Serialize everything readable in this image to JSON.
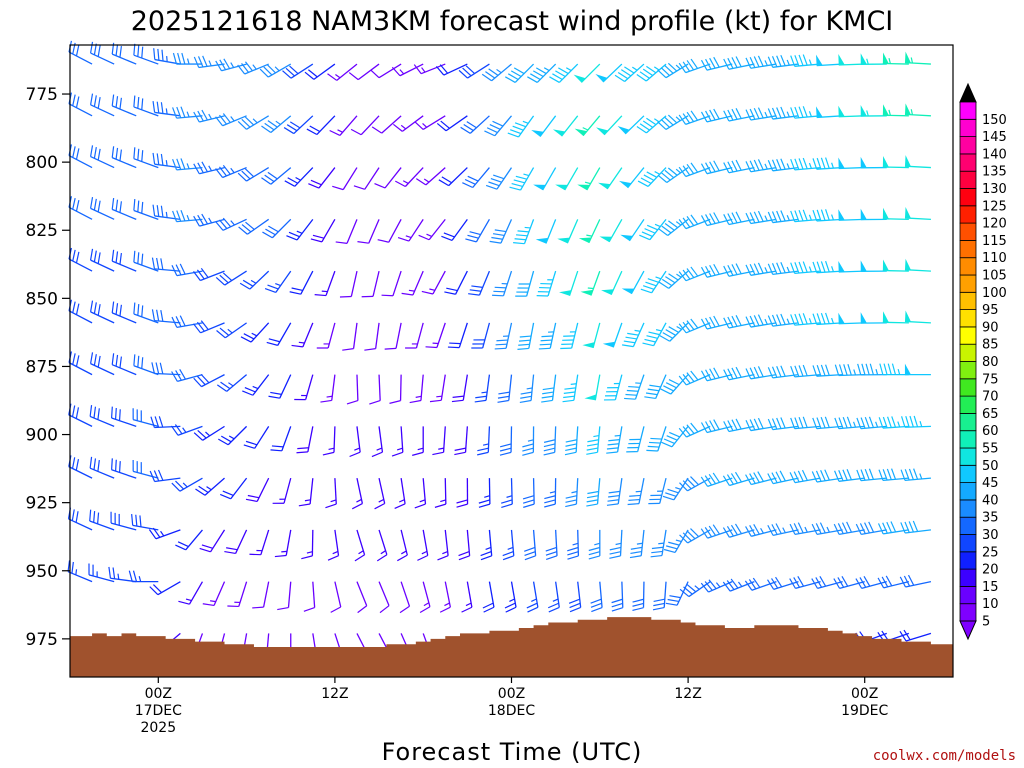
{
  "chart_data": {
    "type": "wind-barb time-height",
    "title": "2025121618 NAM3KM forecast wind profile (kt) for KMCI",
    "xlabel": "Forecast Time (UTC)",
    "ylabel": "",
    "y_ticks": [
      "775",
      "800",
      "825",
      "850",
      "875",
      "900",
      "925",
      "950",
      "975"
    ],
    "y_range_hpa": [
      757,
      989
    ],
    "x_tick_labels": [
      {
        "hour": 6,
        "lines": [
          "00Z",
          "17DEC",
          "2025"
        ]
      },
      {
        "hour": 18,
        "lines": [
          "12Z"
        ]
      },
      {
        "hour": 30,
        "lines": [
          "00Z",
          "18DEC"
        ]
      },
      {
        "hour": 42,
        "lines": [
          "12Z"
        ]
      },
      {
        "hour": 54,
        "lines": [
          "00Z",
          "19DEC"
        ]
      }
    ],
    "x_range_hours": [
      0,
      60
    ],
    "colorbar_levels": [
      5,
      10,
      15,
      20,
      25,
      30,
      35,
      40,
      45,
      50,
      55,
      60,
      65,
      70,
      75,
      80,
      85,
      90,
      95,
      100,
      105,
      110,
      115,
      120,
      125,
      130,
      135,
      140,
      145,
      150
    ],
    "colorbar_colors": [
      "#7f00ff",
      "#6a00ff",
      "#3c00ff",
      "#1020ff",
      "#1046ff",
      "#1468ff",
      "#1a8cff",
      "#14aaff",
      "#10c8ff",
      "#10e6e0",
      "#10f0b8",
      "#18f090",
      "#22ee55",
      "#40e820",
      "#80f010",
      "#c8f400",
      "#ffff00",
      "#ffe000",
      "#ffc000",
      "#ffa000",
      "#ff8c00",
      "#ff7000",
      "#ff5000",
      "#ff2000",
      "#ff0010",
      "#ff0040",
      "#ff0070",
      "#ff00a0",
      "#ff00d0",
      "#ff00ff"
    ],
    "colorbar_label_levels": [
      "5",
      "10",
      "15",
      "20",
      "25",
      "30",
      "35",
      "40",
      "45",
      "50",
      "55",
      "60",
      "65",
      "70",
      "75",
      "80",
      "85",
      "90",
      "95",
      "100",
      "105",
      "110",
      "115",
      "120",
      "125",
      "130",
      "135",
      "140",
      "145",
      "150"
    ],
    "surface_pressure_hpa": [
      [
        0,
        974
      ],
      [
        1,
        974
      ],
      [
        2,
        973
      ],
      [
        3,
        974
      ],
      [
        4,
        973
      ],
      [
        5,
        974
      ],
      [
        6,
        974
      ],
      [
        7,
        975
      ],
      [
        8,
        975
      ],
      [
        9,
        976
      ],
      [
        10,
        976
      ],
      [
        11,
        977
      ],
      [
        12,
        977
      ],
      [
        13,
        978
      ],
      [
        14,
        978
      ],
      [
        15,
        978
      ],
      [
        16,
        978
      ],
      [
        17,
        978
      ],
      [
        18,
        978
      ],
      [
        19,
        978
      ],
      [
        20,
        978
      ],
      [
        21,
        978
      ],
      [
        22,
        977
      ],
      [
        23,
        977
      ],
      [
        24,
        976
      ],
      [
        25,
        975
      ],
      [
        26,
        974
      ],
      [
        27,
        973
      ],
      [
        28,
        973
      ],
      [
        29,
        972
      ],
      [
        30,
        972
      ],
      [
        31,
        971
      ],
      [
        32,
        970
      ],
      [
        33,
        969
      ],
      [
        34,
        969
      ],
      [
        35,
        968
      ],
      [
        36,
        968
      ],
      [
        37,
        967
      ],
      [
        38,
        967
      ],
      [
        39,
        967
      ],
      [
        40,
        968
      ],
      [
        41,
        968
      ],
      [
        42,
        969
      ],
      [
        43,
        970
      ],
      [
        44,
        970
      ],
      [
        45,
        971
      ],
      [
        46,
        971
      ],
      [
        47,
        970
      ],
      [
        48,
        970
      ],
      [
        49,
        970
      ],
      [
        50,
        971
      ],
      [
        51,
        971
      ],
      [
        52,
        972
      ],
      [
        53,
        973
      ],
      [
        54,
        974
      ],
      [
        55,
        975
      ],
      [
        56,
        975
      ],
      [
        57,
        976
      ],
      [
        58,
        976
      ],
      [
        59,
        977
      ],
      [
        60,
        977
      ]
    ],
    "wind_profile": {
      "pressure_levels_hpa": [
        764,
        783,
        802,
        821,
        840,
        859,
        878,
        897,
        916,
        935,
        954,
        973
      ],
      "times_hours": [
        0,
        1.5,
        3,
        4.5,
        6,
        7.5,
        9,
        10.5,
        12,
        13.5,
        15,
        16.5,
        18,
        19.5,
        21,
        22.5,
        24,
        25.5,
        27,
        28.5,
        30,
        31.5,
        33,
        34.5,
        36,
        37.5,
        39,
        40.5,
        42,
        43.5,
        45,
        46.5,
        48,
        49.5,
        51,
        52.5,
        54,
        55.5,
        57,
        58.5,
        60
      ],
      "keyframes": [
        {
          "hour": 0,
          "dir_deg": [
            300,
            300,
            300,
            300,
            300,
            300,
            300,
            300,
            300,
            300,
            300,
            300
          ],
          "speed_kt": [
            30,
            30,
            30,
            30,
            28,
            28,
            28,
            28,
            28,
            28,
            25,
            20
          ]
        },
        {
          "hour": 6,
          "dir_deg": [
            290,
            290,
            290,
            290,
            290,
            290,
            290,
            285,
            285,
            280,
            270,
            260
          ],
          "speed_kt": [
            30,
            30,
            30,
            30,
            30,
            30,
            30,
            30,
            30,
            28,
            25,
            20
          ]
        },
        {
          "hour": 9,
          "dir_deg": [
            270,
            265,
            265,
            265,
            260,
            260,
            255,
            250,
            240,
            220,
            210,
            200
          ],
          "speed_kt": [
            35,
            35,
            35,
            35,
            30,
            30,
            30,
            25,
            25,
            20,
            15,
            12
          ]
        },
        {
          "hour": 15,
          "dir_deg": [
            240,
            230,
            230,
            225,
            215,
            210,
            205,
            200,
            195,
            190,
            185,
            180
          ],
          "speed_kt": [
            35,
            35,
            30,
            30,
            25,
            20,
            20,
            20,
            15,
            15,
            10,
            10
          ]
        },
        {
          "hour": 20,
          "dir_deg": [
            230,
            220,
            210,
            200,
            190,
            185,
            175,
            170,
            165,
            160,
            155,
            150
          ],
          "speed_kt": [
            10,
            10,
            10,
            10,
            10,
            10,
            10,
            15,
            15,
            15,
            10,
            10
          ]
        },
        {
          "hour": 26,
          "dir_deg": [
            250,
            240,
            230,
            220,
            210,
            200,
            190,
            185,
            180,
            175,
            170,
            165
          ],
          "speed_kt": [
            15,
            15,
            15,
            15,
            15,
            15,
            15,
            15,
            15,
            15,
            15,
            12
          ]
        },
        {
          "hour": 31,
          "dir_deg": [
            225,
            215,
            210,
            200,
            195,
            190,
            185,
            180,
            178,
            175,
            170,
            165
          ],
          "speed_kt": [
            40,
            45,
            45,
            45,
            40,
            40,
            35,
            35,
            30,
            30,
            25,
            15
          ]
        },
        {
          "hour": 36,
          "dir_deg": [
            225,
            220,
            210,
            205,
            200,
            195,
            190,
            185,
            185,
            180,
            175,
            170
          ],
          "speed_kt": [
            50,
            55,
            55,
            55,
            55,
            50,
            50,
            45,
            40,
            35,
            30,
            15
          ]
        },
        {
          "hour": 41,
          "dir_deg": [
            230,
            230,
            225,
            220,
            215,
            210,
            205,
            200,
            195,
            190,
            185,
            180
          ],
          "speed_kt": [
            45,
            45,
            45,
            45,
            45,
            45,
            40,
            40,
            35,
            35,
            30,
            15
          ]
        },
        {
          "hour": 44,
          "dir_deg": [
            255,
            255,
            255,
            255,
            255,
            255,
            255,
            255,
            250,
            250,
            245,
            240
          ],
          "speed_kt": [
            40,
            40,
            40,
            40,
            40,
            40,
            40,
            40,
            40,
            40,
            35,
            20
          ]
        },
        {
          "hour": 51,
          "dir_deg": [
            265,
            265,
            265,
            265,
            265,
            265,
            265,
            265,
            260,
            260,
            255,
            250
          ],
          "speed_kt": [
            45,
            45,
            45,
            45,
            45,
            45,
            40,
            40,
            40,
            35,
            30,
            20
          ]
        },
        {
          "hour": 56,
          "dir_deg": [
            270,
            270,
            270,
            270,
            270,
            270,
            270,
            265,
            265,
            260,
            255,
            250
          ],
          "speed_kt": [
            55,
            55,
            50,
            50,
            50,
            50,
            45,
            45,
            40,
            40,
            30,
            20
          ]
        },
        {
          "hour": 60,
          "dir_deg": [
            275,
            275,
            275,
            275,
            275,
            275,
            270,
            270,
            265,
            265,
            260,
            255
          ],
          "speed_kt": [
            55,
            55,
            50,
            50,
            50,
            50,
            50,
            45,
            45,
            40,
            30,
            20
          ]
        }
      ]
    }
  },
  "credit": "coolwx.com/models",
  "colors": {
    "terrain": "#a0522d",
    "frame": "#000000",
    "background": "#ffffff"
  }
}
